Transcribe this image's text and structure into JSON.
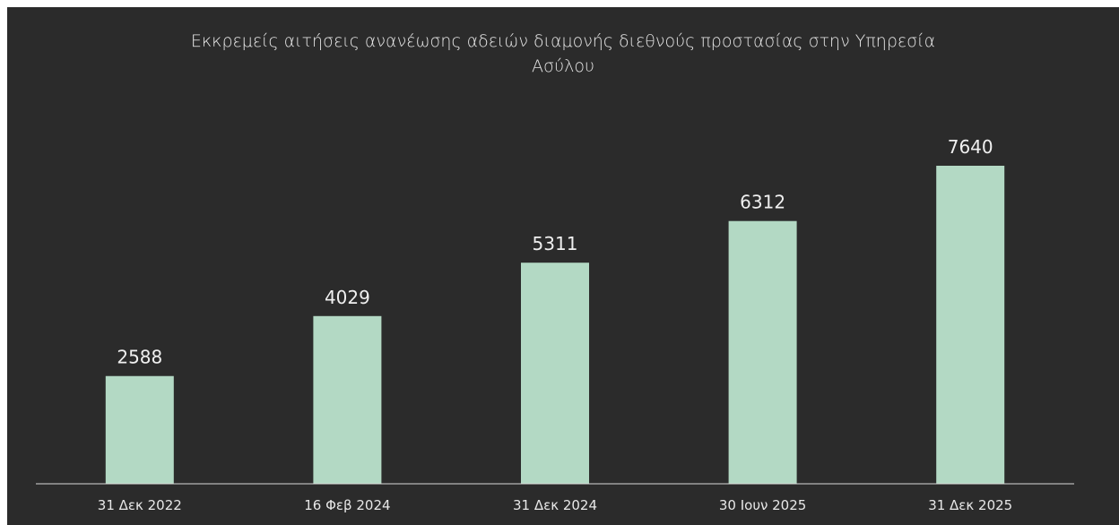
{
  "chart_data": {
    "type": "bar",
    "title": "Εκκρεμείς αιτήσεις ανανέωσης αδειών διαμονής διεθνούς προστασίας στην Υπηρεσία Ασύλου",
    "categories": [
      "31 Δεκ 2022",
      "16 Φεβ 2024",
      "31 Δεκ 2024",
      "30 Ιουν 2025",
      "31 Δεκ 2025"
    ],
    "values": [
      2588,
      4029,
      5311,
      6312,
      7640
    ],
    "color": "#b3d9c4"
  }
}
